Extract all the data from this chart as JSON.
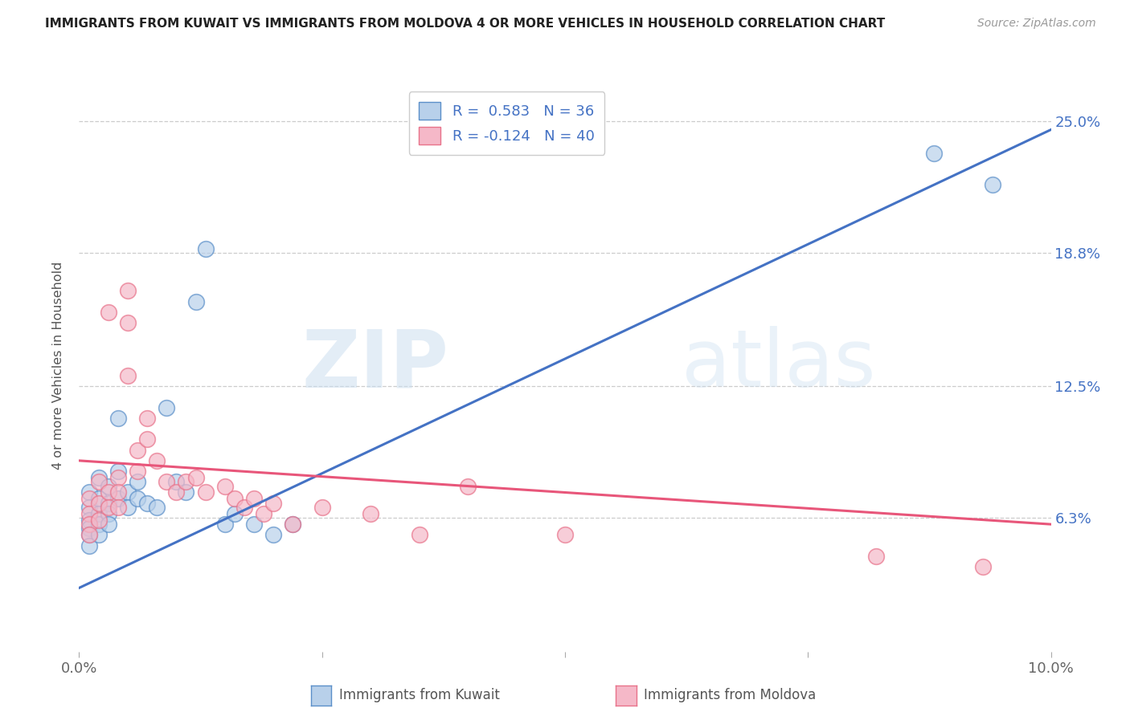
{
  "title": "IMMIGRANTS FROM KUWAIT VS IMMIGRANTS FROM MOLDOVA 4 OR MORE VEHICLES IN HOUSEHOLD CORRELATION CHART",
  "source": "Source: ZipAtlas.com",
  "ylabel": "4 or more Vehicles in Household",
  "xlim": [
    0.0,
    0.1
  ],
  "ylim": [
    -0.01,
    0.27
  ],
  "plot_ylim": [
    0.0,
    0.27
  ],
  "xtick_positions": [
    0.0,
    0.025,
    0.05,
    0.075,
    0.1
  ],
  "xtick_labels": [
    "0.0%",
    "",
    "",
    "",
    "10.0%"
  ],
  "ytick_values": [
    0.063,
    0.125,
    0.188,
    0.25
  ],
  "ytick_labels": [
    "6.3%",
    "12.5%",
    "18.8%",
    "25.0%"
  ],
  "grid_color": "#cccccc",
  "background_color": "#ffffff",
  "kuwait_color": "#b8d0ea",
  "moldova_color": "#f5b8c8",
  "kuwait_edge_color": "#5b8fc9",
  "moldova_edge_color": "#e8728a",
  "kuwait_line_color": "#4472c4",
  "moldova_line_color": "#e8567a",
  "kuwait_R": 0.583,
  "kuwait_N": 36,
  "moldova_R": -0.124,
  "moldova_N": 40,
  "kuwait_trend": [
    0.0,
    0.03,
    0.246
  ],
  "moldova_trend": [
    0.0,
    0.09,
    0.06
  ],
  "kuwait_scatter": [
    [
      0.001,
      0.075
    ],
    [
      0.001,
      0.068
    ],
    [
      0.001,
      0.062
    ],
    [
      0.001,
      0.058
    ],
    [
      0.001,
      0.055
    ],
    [
      0.001,
      0.05
    ],
    [
      0.002,
      0.072
    ],
    [
      0.002,
      0.065
    ],
    [
      0.002,
      0.06
    ],
    [
      0.002,
      0.055
    ],
    [
      0.002,
      0.082
    ],
    [
      0.003,
      0.078
    ],
    [
      0.003,
      0.07
    ],
    [
      0.003,
      0.065
    ],
    [
      0.003,
      0.06
    ],
    [
      0.004,
      0.11
    ],
    [
      0.004,
      0.085
    ],
    [
      0.004,
      0.072
    ],
    [
      0.005,
      0.075
    ],
    [
      0.005,
      0.068
    ],
    [
      0.006,
      0.08
    ],
    [
      0.006,
      0.072
    ],
    [
      0.007,
      0.07
    ],
    [
      0.008,
      0.068
    ],
    [
      0.009,
      0.115
    ],
    [
      0.01,
      0.08
    ],
    [
      0.011,
      0.075
    ],
    [
      0.012,
      0.165
    ],
    [
      0.013,
      0.19
    ],
    [
      0.015,
      0.06
    ],
    [
      0.016,
      0.065
    ],
    [
      0.018,
      0.06
    ],
    [
      0.02,
      0.055
    ],
    [
      0.022,
      0.06
    ],
    [
      0.088,
      0.235
    ],
    [
      0.094,
      0.22
    ]
  ],
  "moldova_scatter": [
    [
      0.001,
      0.072
    ],
    [
      0.001,
      0.065
    ],
    [
      0.001,
      0.06
    ],
    [
      0.001,
      0.055
    ],
    [
      0.002,
      0.08
    ],
    [
      0.002,
      0.07
    ],
    [
      0.002,
      0.062
    ],
    [
      0.003,
      0.075
    ],
    [
      0.003,
      0.068
    ],
    [
      0.003,
      0.16
    ],
    [
      0.004,
      0.082
    ],
    [
      0.004,
      0.075
    ],
    [
      0.004,
      0.068
    ],
    [
      0.005,
      0.17
    ],
    [
      0.005,
      0.155
    ],
    [
      0.005,
      0.13
    ],
    [
      0.006,
      0.095
    ],
    [
      0.006,
      0.085
    ],
    [
      0.007,
      0.11
    ],
    [
      0.007,
      0.1
    ],
    [
      0.008,
      0.09
    ],
    [
      0.009,
      0.08
    ],
    [
      0.01,
      0.075
    ],
    [
      0.011,
      0.08
    ],
    [
      0.012,
      0.082
    ],
    [
      0.013,
      0.075
    ],
    [
      0.015,
      0.078
    ],
    [
      0.016,
      0.072
    ],
    [
      0.017,
      0.068
    ],
    [
      0.018,
      0.072
    ],
    [
      0.019,
      0.065
    ],
    [
      0.02,
      0.07
    ],
    [
      0.022,
      0.06
    ],
    [
      0.025,
      0.068
    ],
    [
      0.03,
      0.065
    ],
    [
      0.035,
      0.055
    ],
    [
      0.04,
      0.078
    ],
    [
      0.05,
      0.055
    ],
    [
      0.082,
      0.045
    ],
    [
      0.093,
      0.04
    ]
  ],
  "watermark_zip": "ZIP",
  "watermark_atlas": "atlas"
}
